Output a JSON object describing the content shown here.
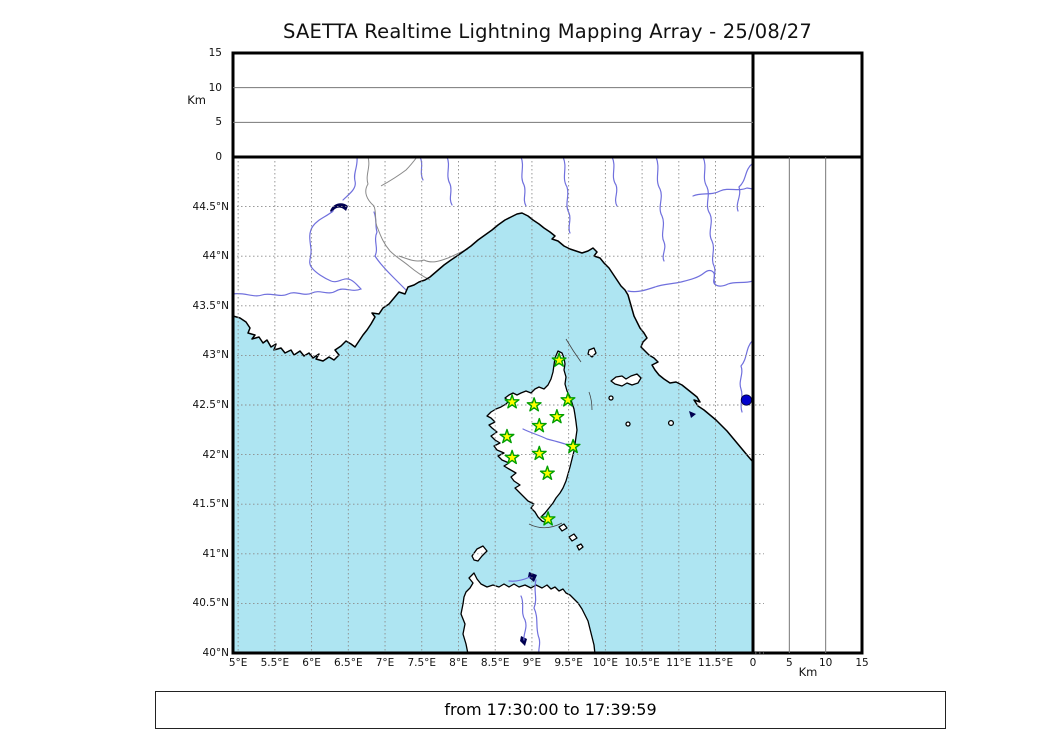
{
  "header": {
    "title": "SAETTA Realtime Lightning Mapping Array - 25/08/27"
  },
  "footer": {
    "time_range": "from 17:30:00 to 17:39:59"
  },
  "colors": {
    "sea": "#aee5f2",
    "land": "#ffffff",
    "coastline": "#000000",
    "grid": "#8c8c8c",
    "river": "#7070dd",
    "country_border": "#8a8a8a",
    "panel_grid": "#777777",
    "station_fill": "#ffff00",
    "station_stroke": "#00a000",
    "event_dot": "#0000cc",
    "lake": "#000050",
    "frame": "#000000"
  },
  "top_panel": {
    "axis_label": "Km",
    "tick_values": [
      0,
      5,
      10,
      15
    ],
    "range": [
      0,
      15
    ]
  },
  "right_panel": {
    "axis_label": "Km",
    "tick_values": [
      0,
      5,
      10,
      15
    ],
    "range": [
      0,
      15
    ]
  },
  "map": {
    "lat_range": [
      40,
      45
    ],
    "lon_range": [
      4.93,
      12.01
    ],
    "lat_ticks": [
      {
        "v": 44.5,
        "label": "44.5°N"
      },
      {
        "v": 44,
        "label": "44°N"
      },
      {
        "v": 43.5,
        "label": "43.5°N"
      },
      {
        "v": 43,
        "label": "43°N"
      },
      {
        "v": 42.5,
        "label": "42.5°N"
      },
      {
        "v": 42,
        "label": "42°N"
      },
      {
        "v": 41.5,
        "label": "41.5°N"
      },
      {
        "v": 41,
        "label": "41°N"
      },
      {
        "v": 40.5,
        "label": "40.5°N"
      },
      {
        "v": 40,
        "label": "40°N"
      }
    ],
    "lon_ticks": [
      {
        "v": 5,
        "label": "5°E"
      },
      {
        "v": 5.5,
        "label": "5.5°E"
      },
      {
        "v": 6,
        "label": "6°E"
      },
      {
        "v": 6.5,
        "label": "6.5°E"
      },
      {
        "v": 7,
        "label": "7°E"
      },
      {
        "v": 7.5,
        "label": "7.5°E"
      },
      {
        "v": 8,
        "label": "8°E"
      },
      {
        "v": 8.5,
        "label": "8.5°E"
      },
      {
        "v": 9,
        "label": "9°E"
      },
      {
        "v": 9.5,
        "label": "9.5°E"
      },
      {
        "v": 10,
        "label": "10°E"
      },
      {
        "v": 10.5,
        "label": "10.5°E"
      },
      {
        "v": 11,
        "label": "11°E"
      },
      {
        "v": 11.5,
        "label": "11.5°E"
      }
    ]
  },
  "stations": [
    {
      "lon": 9.37,
      "lat": 42.95
    },
    {
      "lon": 8.73,
      "lat": 42.53
    },
    {
      "lon": 9.03,
      "lat": 42.5
    },
    {
      "lon": 9.49,
      "lat": 42.55
    },
    {
      "lon": 9.34,
      "lat": 42.38
    },
    {
      "lon": 9.1,
      "lat": 42.29
    },
    {
      "lon": 8.66,
      "lat": 42.18
    },
    {
      "lon": 9.56,
      "lat": 42.08
    },
    {
      "lon": 9.1,
      "lat": 42.01
    },
    {
      "lon": 8.73,
      "lat": 41.97
    },
    {
      "lon": 9.21,
      "lat": 41.81
    },
    {
      "lon": 9.22,
      "lat": 41.35
    }
  ],
  "events": [
    {
      "lon": 11.92,
      "lat": 42.55
    }
  ]
}
